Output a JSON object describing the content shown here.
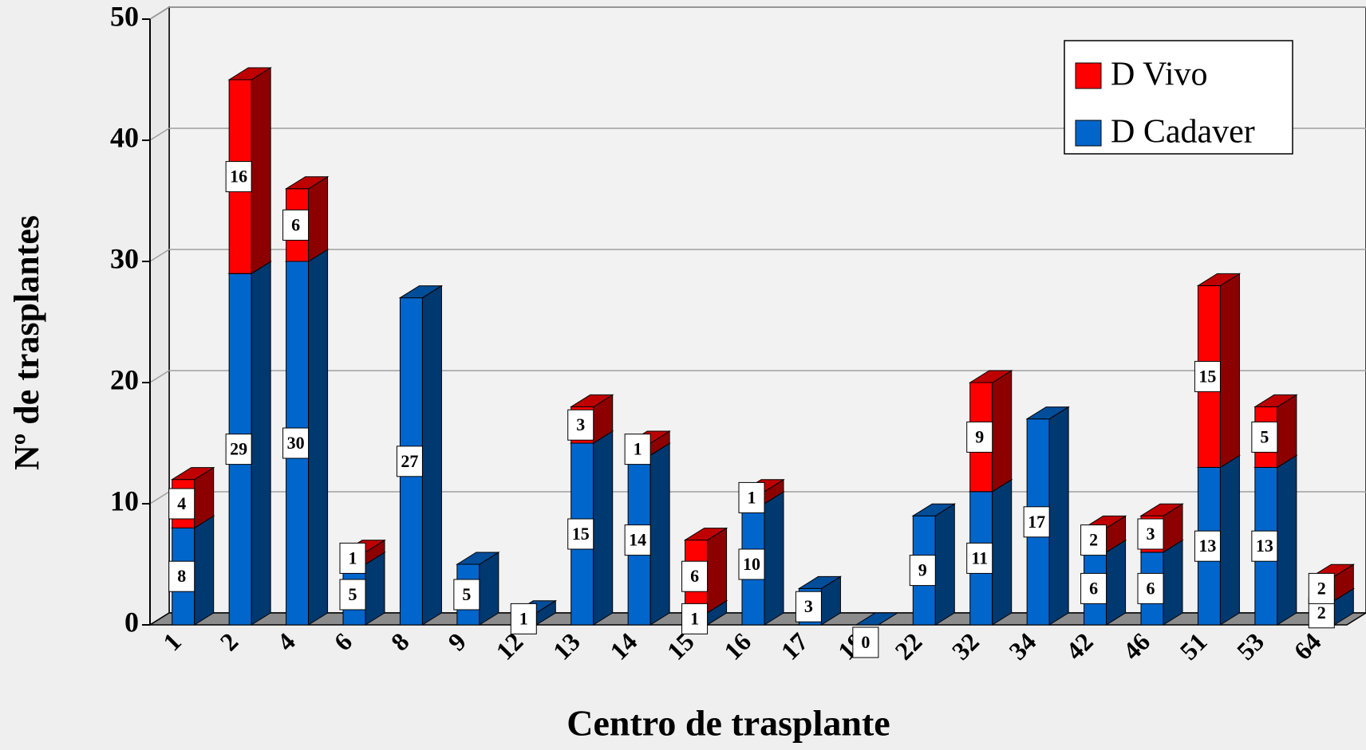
{
  "chart_data": {
    "type": "bar3d_stacked",
    "xlabel": "Centro de trasplante",
    "ylabel": "Nº de trasplantes",
    "categories": [
      "1",
      "2",
      "4",
      "6",
      "8",
      "9",
      "12",
      "13",
      "14",
      "15",
      "16",
      "17",
      "19",
      "22",
      "32",
      "34",
      "42",
      "46",
      "51",
      "53",
      "64"
    ],
    "series": [
      {
        "name": "D Vivo",
        "color": "#ff0000",
        "values": [
          4,
          16,
          6,
          1,
          null,
          null,
          null,
          3,
          1,
          6,
          1,
          null,
          null,
          null,
          9,
          null,
          2,
          3,
          15,
          5,
          2
        ]
      },
      {
        "name": "D Cadaver",
        "color": "#0066cc",
        "values": [
          8,
          29,
          30,
          5,
          27,
          5,
          1,
          15,
          14,
          1,
          10,
          3,
          0,
          9,
          11,
          17,
          6,
          6,
          13,
          13,
          2
        ]
      }
    ],
    "ylim": [
      0,
      50
    ],
    "yticks": [
      0,
      10,
      20,
      30,
      40,
      50
    ],
    "grid": true,
    "legend": "top-right"
  }
}
